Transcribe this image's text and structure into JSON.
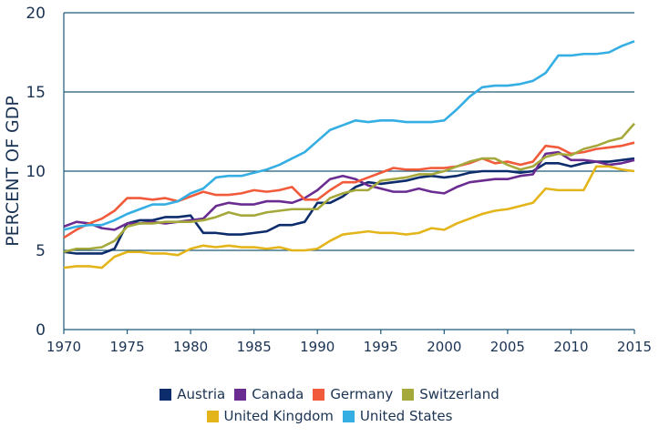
{
  "chart_data": {
    "type": "line",
    "y_label": "PERCENT OF GDP",
    "x": [
      1970,
      1971,
      1972,
      1973,
      1974,
      1975,
      1976,
      1977,
      1978,
      1979,
      1980,
      1981,
      1982,
      1983,
      1984,
      1985,
      1986,
      1987,
      1988,
      1989,
      1990,
      1991,
      1992,
      1993,
      1994,
      1995,
      1996,
      1997,
      1998,
      1999,
      2000,
      2001,
      2002,
      2003,
      2004,
      2005,
      2006,
      2007,
      2008,
      2009,
      2010,
      2011,
      2012,
      2013,
      2014,
      2015
    ],
    "xlim": [
      1970,
      2015
    ],
    "xticks": [
      1970,
      1975,
      1980,
      1985,
      1990,
      1995,
      2000,
      2005,
      2010,
      2015
    ],
    "ylim": [
      0,
      20
    ],
    "yticks": [
      0,
      5,
      10,
      15,
      20
    ],
    "grid": true,
    "legend": "bottom",
    "series": [
      {
        "name": "Austria",
        "color": "#0d2c6c",
        "values": [
          4.9,
          4.8,
          4.8,
          4.8,
          5.1,
          6.7,
          6.9,
          6.9,
          7.1,
          7.1,
          7.2,
          6.1,
          6.1,
          6.0,
          6.0,
          6.1,
          6.2,
          6.6,
          6.6,
          6.8,
          8.0,
          8.0,
          8.4,
          9.0,
          9.3,
          9.2,
          9.3,
          9.4,
          9.6,
          9.7,
          9.6,
          9.7,
          9.9,
          10.0,
          10.0,
          10.0,
          9.9,
          10.0,
          10.5,
          10.5,
          10.3,
          10.5,
          10.6,
          10.6,
          10.7,
          10.8
        ]
      },
      {
        "name": "Canada",
        "color": "#6b2c91",
        "values": [
          6.5,
          6.8,
          6.7,
          6.4,
          6.3,
          6.7,
          6.7,
          6.8,
          6.7,
          6.8,
          6.9,
          7.0,
          7.8,
          8.0,
          7.9,
          7.9,
          8.1,
          8.1,
          8.0,
          8.3,
          8.8,
          9.5,
          9.7,
          9.5,
          9.1,
          8.9,
          8.7,
          8.7,
          8.9,
          8.7,
          8.6,
          9.0,
          9.3,
          9.4,
          9.5,
          9.5,
          9.7,
          9.8,
          11.1,
          11.2,
          10.7,
          10.7,
          10.6,
          10.4,
          10.5,
          10.7
        ]
      },
      {
        "name": "Germany",
        "color": "#f15a3a",
        "values": [
          5.8,
          6.3,
          6.7,
          7.0,
          7.5,
          8.3,
          8.3,
          8.2,
          8.3,
          8.1,
          8.4,
          8.7,
          8.5,
          8.5,
          8.6,
          8.8,
          8.7,
          8.8,
          9.0,
          8.2,
          8.2,
          8.8,
          9.3,
          9.3,
          9.6,
          9.9,
          10.2,
          10.1,
          10.1,
          10.2,
          10.2,
          10.3,
          10.5,
          10.8,
          10.5,
          10.6,
          10.4,
          10.6,
          11.6,
          11.5,
          11.1,
          11.2,
          11.4,
          11.5,
          11.6,
          11.8
        ]
      },
      {
        "name": "Switzerland",
        "color": "#a5a83a",
        "values": [
          4.9,
          5.1,
          5.1,
          5.2,
          5.6,
          6.5,
          6.7,
          6.7,
          6.8,
          6.8,
          6.8,
          6.9,
          7.1,
          7.4,
          7.2,
          7.2,
          7.4,
          7.5,
          7.6,
          7.6,
          7.6,
          8.3,
          8.6,
          8.8,
          8.8,
          9.4,
          9.5,
          9.6,
          9.8,
          9.8,
          10.0,
          10.3,
          10.6,
          10.8,
          10.8,
          10.4,
          10.1,
          10.3,
          10.9,
          11.1,
          11.0,
          11.4,
          11.6,
          11.9,
          12.1,
          13.0
        ]
      },
      {
        "name": "United Kingdom",
        "color": "#e3b51b",
        "values": [
          3.9,
          4.0,
          4.0,
          3.9,
          4.6,
          4.9,
          4.9,
          4.8,
          4.8,
          4.7,
          5.1,
          5.3,
          5.2,
          5.3,
          5.2,
          5.2,
          5.1,
          5.2,
          5.0,
          5.0,
          5.1,
          5.6,
          6.0,
          6.1,
          6.2,
          6.1,
          6.1,
          6.0,
          6.1,
          6.4,
          6.3,
          6.7,
          7.0,
          7.3,
          7.5,
          7.6,
          7.8,
          8.0,
          8.9,
          8.8,
          8.8,
          8.8,
          10.3,
          10.3,
          10.1,
          10.0
        ]
      },
      {
        "name": "United States",
        "color": "#35aee3",
        "values": [
          6.3,
          6.5,
          6.6,
          6.6,
          6.9,
          7.3,
          7.6,
          7.9,
          7.9,
          8.1,
          8.6,
          8.9,
          9.6,
          9.7,
          9.7,
          9.9,
          10.1,
          10.4,
          10.8,
          11.2,
          11.9,
          12.6,
          12.9,
          13.2,
          13.1,
          13.2,
          13.2,
          13.1,
          13.1,
          13.1,
          13.2,
          13.9,
          14.7,
          15.3,
          15.4,
          15.4,
          15.5,
          15.7,
          16.2,
          17.3,
          17.3,
          17.4,
          17.4,
          17.5,
          17.9,
          18.2
        ]
      }
    ]
  }
}
